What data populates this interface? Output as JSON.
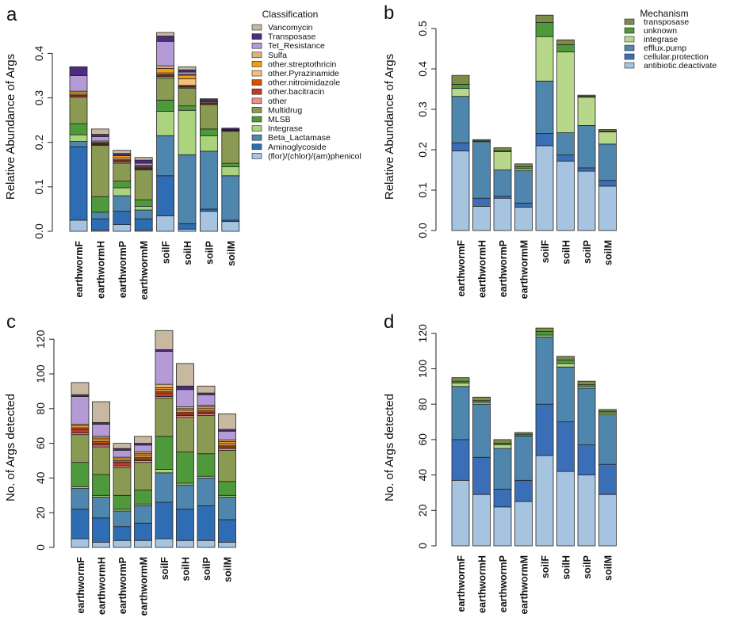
{
  "chart_data": [
    {
      "panel": "a",
      "type": "stacked-bar",
      "ylabel": "Relative Abundance of Args",
      "xlabel": "",
      "ylim": [
        0,
        0.4
      ],
      "yticks": [
        0.0,
        0.1,
        0.2,
        0.3,
        0.4
      ],
      "ytick_labels": [
        "0.0",
        "0.1",
        "0.2",
        "0.3",
        "0.4"
      ],
      "categories": [
        "earthwormF",
        "earthwormH",
        "earthwormP",
        "earthwormM",
        "soilF",
        "soilH",
        "soilP",
        "soilM"
      ],
      "legend_title": "Classification",
      "legend_position": "top-right",
      "series": [
        {
          "name": "(flor)/(chlor)/(am)phenicol",
          "color": "#a6c3e0",
          "values": [
            0.025,
            0.003,
            0.015,
            0.003,
            0.035,
            0.005,
            0.045,
            0.022
          ]
        },
        {
          "name": "Aminoglycoside",
          "color": "#2e6db4",
          "values": [
            0.165,
            0.025,
            0.03,
            0.025,
            0.09,
            0.012,
            0.005,
            0.003
          ]
        },
        {
          "name": "Beta_Lactamase",
          "color": "#4f86ad",
          "values": [
            0.012,
            0.015,
            0.035,
            0.02,
            0.09,
            0.155,
            0.13,
            0.1
          ]
        },
        {
          "name": "Integrase",
          "color": "#a9d37c",
          "values": [
            0.015,
            0.0,
            0.018,
            0.008,
            0.055,
            0.1,
            0.035,
            0.02
          ]
        },
        {
          "name": "MLSB",
          "color": "#4e9a3a",
          "values": [
            0.025,
            0.035,
            0.015,
            0.015,
            0.025,
            0.01,
            0.015,
            0.008
          ]
        },
        {
          "name": "Multidrug",
          "color": "#8a9a52",
          "values": [
            0.06,
            0.115,
            0.04,
            0.067,
            0.05,
            0.04,
            0.055,
            0.072
          ]
        },
        {
          "name": "other",
          "color": "#f08e8e",
          "values": [
            0.0,
            0.0,
            0.003,
            0.002,
            0.003,
            0.002,
            0.0,
            0.0
          ]
        },
        {
          "name": "other.bacitracin",
          "color": "#c0392b",
          "values": [
            0.003,
            0.002,
            0.003,
            0.002,
            0.003,
            0.002,
            0.002,
            0.001
          ]
        },
        {
          "name": "other.nitroimidazole",
          "color": "#d35400",
          "values": [
            0.002,
            0.002,
            0.002,
            0.002,
            0.002,
            0.002,
            0.002,
            0.001
          ]
        },
        {
          "name": "other.Pyrazinamide",
          "color": "#f5c07a",
          "values": [
            0.004,
            0.002,
            0.004,
            0.002,
            0.003,
            0.015,
            0.002,
            0.001
          ]
        },
        {
          "name": "other.streptothricin",
          "color": "#f39c12",
          "values": [
            0.004,
            0.001,
            0.005,
            0.002,
            0.01,
            0.008,
            0.002,
            0.001
          ]
        },
        {
          "name": "Sulfa",
          "color": "#e0b080",
          "values": [
            0.0,
            0.003,
            0.0,
            0.0,
            0.006,
            0.002,
            0.0,
            0.0
          ]
        },
        {
          "name": "Tet_Resistance",
          "color": "#b49ad6",
          "values": [
            0.035,
            0.01,
            0.0,
            0.005,
            0.055,
            0.005,
            0.0,
            0.0
          ]
        },
        {
          "name": "Transposase",
          "color": "#4b2c7d",
          "values": [
            0.02,
            0.005,
            0.005,
            0.007,
            0.012,
            0.005,
            0.005,
            0.003
          ]
        },
        {
          "name": "Vancomycin",
          "color": "#c8b8a0",
          "values": [
            0.0,
            0.012,
            0.007,
            0.006,
            0.008,
            0.007,
            0.0,
            0.0
          ]
        }
      ]
    },
    {
      "panel": "b",
      "type": "stacked-bar",
      "ylabel": "Relative Abundance of Args",
      "xlabel": "",
      "ylim": [
        0,
        0.5
      ],
      "yticks": [
        0.0,
        0.1,
        0.2,
        0.3,
        0.4,
        0.5
      ],
      "ytick_labels": [
        "0.0",
        "0.1",
        "0.2",
        "0.3",
        "0.4",
        "0.5"
      ],
      "categories": [
        "earthwormF",
        "earthwormH",
        "earthwormP",
        "earthwormM",
        "soilF",
        "soilH",
        "soilP",
        "soilM"
      ],
      "legend_title": "Mechanism",
      "legend_position": "top-right",
      "series": [
        {
          "name": "antibiotic.deactivate",
          "color": "#a6c3e0",
          "values": [
            0.197,
            0.06,
            0.08,
            0.058,
            0.21,
            0.172,
            0.147,
            0.11
          ]
        },
        {
          "name": "cellular.protection",
          "color": "#3a6fb8",
          "values": [
            0.02,
            0.02,
            0.005,
            0.01,
            0.03,
            0.015,
            0.008,
            0.014
          ]
        },
        {
          "name": "efflux.pump",
          "color": "#4f86ad",
          "values": [
            0.115,
            0.14,
            0.065,
            0.08,
            0.13,
            0.055,
            0.105,
            0.09
          ]
        },
        {
          "name": "integrase",
          "color": "#b7d88a",
          "values": [
            0.02,
            0.0,
            0.045,
            0.005,
            0.11,
            0.2,
            0.07,
            0.03
          ]
        },
        {
          "name": "unknown",
          "color": "#4e9a3a",
          "values": [
            0.01,
            0.002,
            0.003,
            0.005,
            0.035,
            0.018,
            0.002,
            0.002
          ]
        },
        {
          "name": "transposase",
          "color": "#7e8c4a",
          "values": [
            0.022,
            0.003,
            0.007,
            0.007,
            0.018,
            0.012,
            0.003,
            0.004
          ]
        }
      ]
    },
    {
      "panel": "c",
      "type": "stacked-bar",
      "ylabel": "No. of Args detected",
      "xlabel": "",
      "ylim": [
        0,
        120
      ],
      "yticks": [
        0,
        20,
        40,
        60,
        80,
        100,
        120
      ],
      "ytick_labels": [
        "0",
        "20",
        "40",
        "60",
        "80",
        "100",
        "120"
      ],
      "categories": [
        "earthwormF",
        "earthwormH",
        "earthwormP",
        "earthwormM",
        "soilF",
        "soilH",
        "soilP",
        "soilM"
      ],
      "series": [
        {
          "name": "(flor)/(chlor)/(am)phenicol",
          "color": "#a6c3e0",
          "values": [
            5,
            3,
            4,
            4,
            5,
            4,
            4,
            3
          ]
        },
        {
          "name": "Aminoglycoside",
          "color": "#2e6db4",
          "values": [
            17,
            14,
            8,
            10,
            21,
            18,
            20,
            13
          ]
        },
        {
          "name": "Beta_Lactamase",
          "color": "#4f86ad",
          "values": [
            12,
            12,
            9,
            10,
            17,
            14,
            16,
            13
          ]
        },
        {
          "name": "Integrase",
          "color": "#a9d37c",
          "values": [
            1,
            1,
            1,
            1,
            2,
            1,
            1,
            1
          ]
        },
        {
          "name": "MLSB",
          "color": "#4e9a3a",
          "values": [
            14,
            12,
            8,
            8,
            19,
            18,
            13,
            8
          ]
        },
        {
          "name": "Multidrug",
          "color": "#8a9a52",
          "values": [
            16,
            16,
            16,
            16,
            22,
            20,
            22,
            18
          ]
        },
        {
          "name": "other",
          "color": "#f08e8e",
          "values": [
            1,
            1,
            1,
            1,
            1,
            1,
            1,
            1
          ]
        },
        {
          "name": "other.bacitracin",
          "color": "#c0392b",
          "values": [
            2,
            1,
            2,
            1,
            2,
            1,
            1,
            1
          ]
        },
        {
          "name": "other.nitroimidazole",
          "color": "#d35400",
          "values": [
            1,
            1,
            1,
            1,
            1,
            1,
            1,
            1
          ]
        },
        {
          "name": "other.Pyrazinamide",
          "color": "#f5c07a",
          "values": [
            1,
            1,
            1,
            1,
            1,
            1,
            1,
            1
          ]
        },
        {
          "name": "other.streptothricin",
          "color": "#f39c12",
          "values": [
            1,
            1,
            1,
            1,
            1,
            1,
            1,
            1
          ]
        },
        {
          "name": "Sulfa",
          "color": "#e0b080",
          "values": [
            0,
            1,
            0,
            1,
            2,
            1,
            1,
            1
          ]
        },
        {
          "name": "Tet_Resistance",
          "color": "#b49ad6",
          "values": [
            16,
            7,
            4,
            4,
            19,
            10,
            6,
            5
          ]
        },
        {
          "name": "Transposase",
          "color": "#4b2c7d",
          "values": [
            1,
            1,
            1,
            1,
            1,
            2,
            1,
            1
          ]
        },
        {
          "name": "Vancomycin",
          "color": "#c8b8a0",
          "values": [
            7,
            12,
            3,
            4,
            11,
            13,
            4,
            9
          ]
        }
      ]
    },
    {
      "panel": "d",
      "type": "stacked-bar",
      "ylabel": "No. of Args detected",
      "xlabel": "",
      "ylim": [
        0,
        120
      ],
      "yticks": [
        0,
        20,
        40,
        60,
        80,
        100,
        120
      ],
      "ytick_labels": [
        "0",
        "20",
        "40",
        "60",
        "80",
        "100",
        "120"
      ],
      "categories": [
        "earthwormF",
        "earthwormH",
        "earthwormP",
        "earthwormM",
        "soilF",
        "soilH",
        "soilP",
        "soilM"
      ],
      "series": [
        {
          "name": "antibiotic.deactivate",
          "color": "#a6c3e0",
          "values": [
            37,
            29,
            22,
            25,
            51,
            42,
            40,
            29
          ]
        },
        {
          "name": "cellular.protection",
          "color": "#3a6fb8",
          "values": [
            23,
            21,
            10,
            12,
            29,
            28,
            17,
            17
          ]
        },
        {
          "name": "efflux.pump",
          "color": "#4f86ad",
          "values": [
            30,
            30,
            23,
            25,
            38,
            31,
            32,
            28
          ]
        },
        {
          "name": "integrase",
          "color": "#b7d88a",
          "values": [
            2,
            1,
            2,
            0,
            1,
            2,
            1,
            1
          ]
        },
        {
          "name": "unknown",
          "color": "#4e9a3a",
          "values": [
            1,
            1,
            1,
            1,
            2,
            2,
            1,
            1
          ]
        },
        {
          "name": "transposase",
          "color": "#7e8c4a",
          "values": [
            2,
            2,
            2,
            1,
            2,
            2,
            2,
            1
          ]
        }
      ]
    }
  ]
}
